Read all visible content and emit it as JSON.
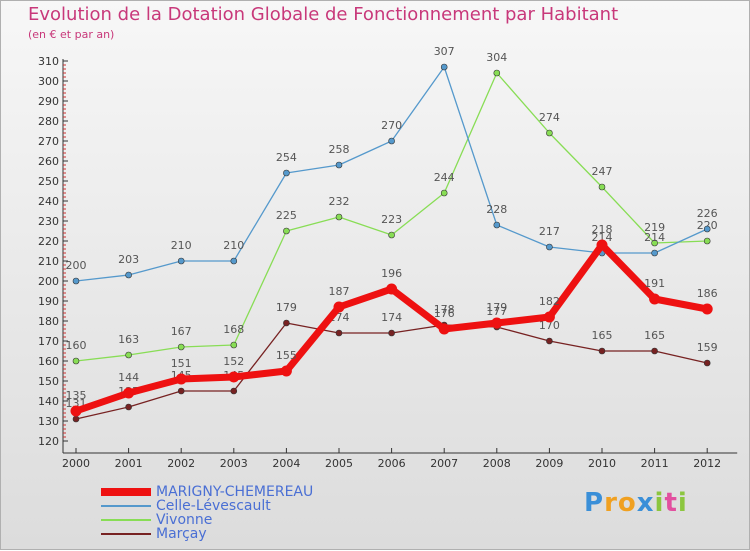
{
  "chart_data": {
    "type": "line",
    "title": "Evolution de la Dotation Globale de Fonctionnement par Habitant",
    "subtitle": "(en € et par an)",
    "x": [
      "2000",
      "2001",
      "2002",
      "2003",
      "2004",
      "2005",
      "2006",
      "2007",
      "2008",
      "2009",
      "2010",
      "2011",
      "2012"
    ],
    "ylim": [
      120,
      310
    ],
    "yticks": [
      120,
      130,
      140,
      150,
      160,
      170,
      180,
      190,
      200,
      210,
      220,
      230,
      240,
      250,
      260,
      270,
      280,
      290,
      300,
      310
    ],
    "grid": false,
    "legend": "bottom-left",
    "series": [
      {
        "name": "MARIGNY-CHEMEREAU",
        "color": "#ee1111",
        "values": [
          135,
          144,
          151,
          152,
          155,
          187,
          196,
          176,
          179,
          182,
          218,
          191,
          186
        ]
      },
      {
        "name": "Celle-Lévescault",
        "color": "#5599cc",
        "values": [
          200,
          203,
          210,
          210,
          254,
          258,
          270,
          307,
          228,
          217,
          214,
          214,
          226
        ]
      },
      {
        "name": "Vivonne",
        "color": "#88dd55",
        "values": [
          160,
          163,
          167,
          168,
          225,
          232,
          223,
          244,
          304,
          274,
          247,
          219,
          220
        ]
      },
      {
        "name": "Marçay",
        "color": "#772222",
        "values": [
          131,
          137,
          145,
          145,
          179,
          174,
          174,
          178,
          177,
          170,
          165,
          165,
          159
        ]
      }
    ]
  },
  "logo": {
    "text": "Proxiti"
  }
}
